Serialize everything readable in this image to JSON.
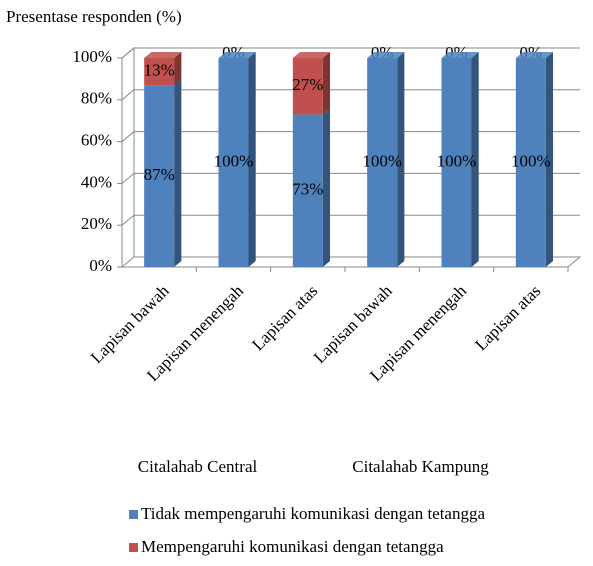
{
  "chart_data": {
    "type": "bar",
    "stacked": true,
    "y_label": "Presentase responden (%)",
    "categories": [
      "Lapisan bawah",
      "Lapisan menengah",
      "Lapisan atas",
      "Lapisan bawah",
      "Lapisan menengah",
      "Lapisan atas"
    ],
    "groups": [
      "Citalahab Central",
      "Citalahab Kampung"
    ],
    "series": [
      {
        "name": "Tidak mempengaruhi komunikasi dengan tetangga",
        "color": "#4f81bd",
        "values": [
          87,
          100,
          73,
          100,
          100,
          100
        ],
        "value_labels": [
          "87%",
          "100%",
          "73%",
          "100%",
          "100%",
          "100%"
        ]
      },
      {
        "name": "Mempengaruhi komunikasi dengan tetangga",
        "color": "#c0504d",
        "values": [
          13,
          0,
          27,
          0,
          0,
          0
        ],
        "value_labels": [
          "13%",
          "0%",
          "27%",
          "0%",
          "0%",
          "0%"
        ]
      }
    ],
    "ylim": [
      0,
      100
    ],
    "yticks": [
      {
        "value": 0,
        "label": "0%"
      },
      {
        "value": 20,
        "label": "20%"
      },
      {
        "value": 40,
        "label": "40%"
      },
      {
        "value": 60,
        "label": "60%"
      },
      {
        "value": 80,
        "label": "80%"
      },
      {
        "value": 100,
        "label": "100%"
      }
    ],
    "grid": true
  }
}
